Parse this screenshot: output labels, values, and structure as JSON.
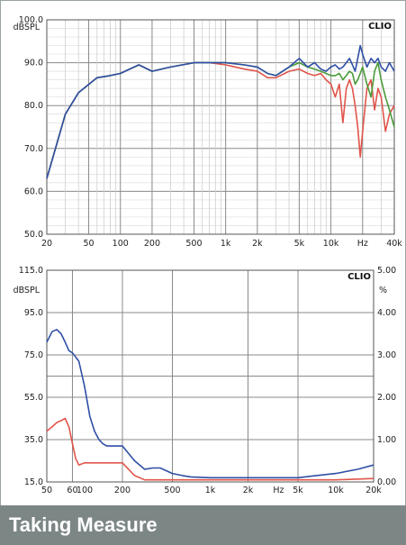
{
  "caption": "Taking Measure",
  "chart_data": [
    {
      "type": "line",
      "brand": "CLIO",
      "ylabel": "dBSPL",
      "xunit": "Hz",
      "xscale": "log",
      "xlim": [
        20,
        40000
      ],
      "ylim": [
        50,
        100
      ],
      "yticks": [
        "100.0",
        "90.0",
        "80.0",
        "70.0",
        "60.0",
        "50.0"
      ],
      "xticks": [
        "20",
        "50",
        "100",
        "200",
        "500",
        "1k",
        "2k",
        "5k",
        "10k",
        "Hz",
        "40k"
      ],
      "series": [
        {
          "color": "#e0554b",
          "x": [
            20,
            30,
            40,
            60,
            80,
            100,
            150,
            200,
            300,
            500,
            700,
            1000,
            1500,
            2000,
            2500,
            3000,
            4000,
            5000,
            6000,
            7000,
            8000,
            9000,
            10000,
            11000,
            12000,
            13000,
            14000,
            15000,
            16000,
            17000,
            18000,
            19000,
            20000,
            22000,
            24000,
            26000,
            28000,
            30000,
            33000,
            36000,
            40000
          ],
          "y": [
            63,
            78,
            83,
            86.5,
            87,
            87.5,
            89.5,
            88,
            89,
            90,
            90,
            89.5,
            88.5,
            88,
            86.5,
            86.5,
            88,
            88.5,
            87.5,
            87,
            87.5,
            86,
            85,
            82,
            85,
            76,
            84,
            86,
            84,
            80,
            75,
            68,
            74,
            84,
            86,
            79,
            84,
            82,
            74,
            78,
            80
          ]
        },
        {
          "color": "#4a9c3a",
          "x": [
            20,
            30,
            40,
            60,
            80,
            100,
            150,
            200,
            300,
            500,
            700,
            1000,
            1500,
            2000,
            2500,
            3000,
            4000,
            5000,
            6000,
            7000,
            8000,
            9000,
            10000,
            11000,
            12000,
            13000,
            14000,
            15000,
            16000,
            17000,
            18000,
            19000,
            20000,
            22000,
            24000,
            26000,
            28000,
            30000,
            33000,
            36000,
            40000
          ],
          "y": [
            63,
            78,
            83,
            86.5,
            87,
            87.5,
            89.5,
            88,
            89,
            90,
            90,
            90,
            89.5,
            89,
            87.5,
            87,
            89,
            90,
            89,
            88.5,
            88,
            87.5,
            87,
            87,
            87.5,
            86,
            87,
            88,
            87.5,
            85,
            86,
            87.5,
            89,
            85,
            82,
            88,
            90,
            86,
            82,
            79,
            75
          ]
        },
        {
          "color": "#2f4fa6",
          "x": [
            20,
            30,
            40,
            60,
            80,
            100,
            150,
            200,
            300,
            500,
            700,
            1000,
            1500,
            2000,
            2500,
            3000,
            4000,
            5000,
            6000,
            7000,
            8000,
            9000,
            10000,
            11000,
            12000,
            13000,
            14000,
            15000,
            16000,
            17000,
            18000,
            19000,
            20000,
            22000,
            24000,
            26000,
            28000,
            30000,
            33000,
            36000,
            40000
          ],
          "y": [
            63,
            78,
            83,
            86.5,
            87,
            87.5,
            89.5,
            88,
            89,
            90,
            90,
            90,
            89.5,
            89,
            87.5,
            87,
            89,
            91,
            89,
            90,
            88.5,
            88,
            89,
            89.5,
            88.5,
            89,
            90,
            91,
            89.5,
            88,
            91,
            94,
            92,
            89,
            91,
            90,
            91,
            89,
            88,
            90,
            88
          ]
        }
      ]
    },
    {
      "type": "line",
      "brand": "CLIO",
      "ylabel": "dBSPL",
      "y2label": "%",
      "xunit": "Hz",
      "xscale": "log",
      "xlim": [
        50,
        20000
      ],
      "ylim": [
        15,
        115
      ],
      "y2lim": [
        0,
        5
      ],
      "yticks": [
        "115.0",
        "95.0",
        "75.0",
        "55.0",
        "35.0",
        "15.0"
      ],
      "y2ticks": [
        "5.00",
        "4.00",
        "3.00",
        "2.00",
        "1.00",
        "0.00"
      ],
      "xticks": [
        "50",
        "60",
        "100",
        "200",
        "500",
        "1k",
        "2k",
        "Hz",
        "5k",
        "10k",
        "20k"
      ],
      "series": [
        {
          "color": "#2f4fa6",
          "axis": "y2",
          "x": [
            50,
            55,
            60,
            65,
            70,
            75,
            80,
            90,
            100,
            110,
            120,
            130,
            140,
            150,
            170,
            200,
            250,
            300,
            350,
            400,
            500,
            600,
            700,
            1000,
            2000,
            3000,
            5000,
            7000,
            10000,
            15000,
            20000
          ],
          "y": [
            3.3,
            3.55,
            3.6,
            3.5,
            3.3,
            3.1,
            3.05,
            2.85,
            2.25,
            1.55,
            1.2,
            1.0,
            0.9,
            0.85,
            0.85,
            0.85,
            0.5,
            0.3,
            0.33,
            0.33,
            0.2,
            0.15,
            0.12,
            0.1,
            0.1,
            0.1,
            0.1,
            0.15,
            0.2,
            0.3,
            0.4
          ]
        },
        {
          "color": "#e0554b",
          "axis": "y2",
          "x": [
            50,
            55,
            60,
            65,
            70,
            75,
            80,
            85,
            90,
            100,
            120,
            150,
            200,
            250,
            300,
            400,
            500,
            700,
            1000,
            2000,
            5000,
            10000,
            20000
          ],
          "y": [
            1.2,
            1.3,
            1.4,
            1.45,
            1.5,
            1.3,
            0.9,
            0.55,
            0.4,
            0.45,
            0.45,
            0.45,
            0.45,
            0.15,
            0.05,
            0.05,
            0.05,
            0.05,
            0.05,
            0.05,
            0.05,
            0.05,
            0.08
          ]
        }
      ]
    }
  ]
}
